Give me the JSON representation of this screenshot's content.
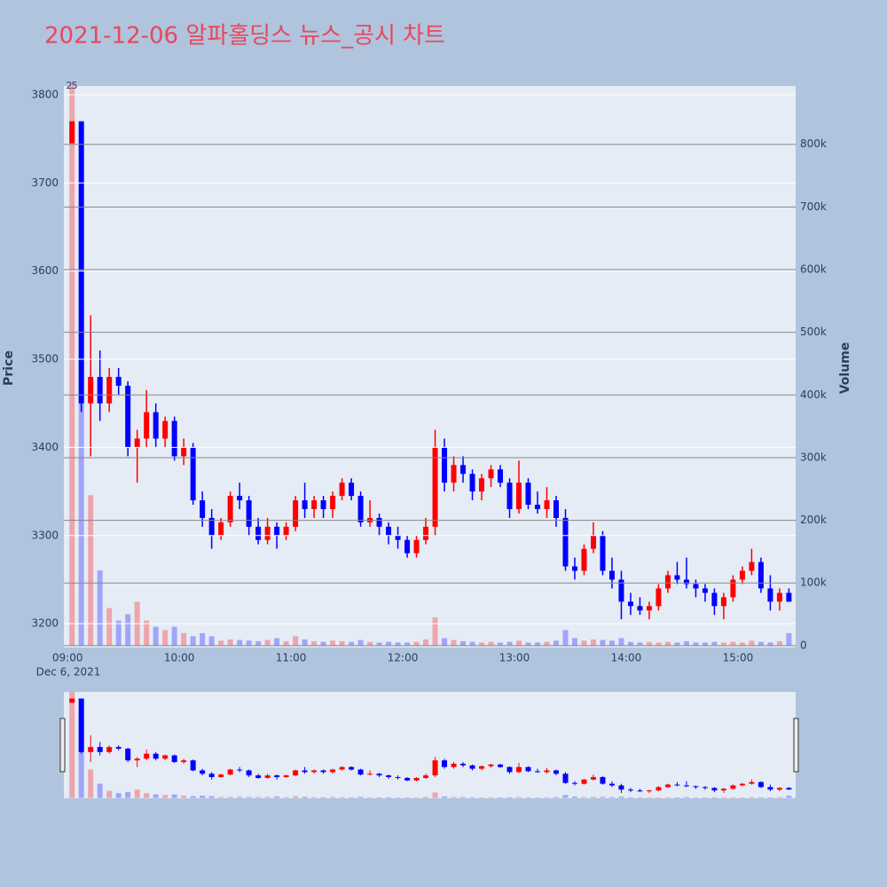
{
  "chart_data": {
    "type": "candlestick",
    "title": "2021-12-06 알파홀딩스 뉴스_공시 차트",
    "ylabel": "Price",
    "y2label": "Volume",
    "x_sublabel": "Dec 6, 2021",
    "annotations": [
      "2",
      "5"
    ],
    "increasing_color": "#ff0000",
    "decreasing_color": "#0000ff",
    "grid": true,
    "x": [
      "09:00",
      "09:05",
      "09:10",
      "09:15",
      "09:20",
      "09:25",
      "09:30",
      "09:35",
      "09:40",
      "09:45",
      "09:50",
      "09:55",
      "10:00",
      "10:05",
      "10:10",
      "10:15",
      "10:20",
      "10:25",
      "10:30",
      "10:35",
      "10:40",
      "10:45",
      "10:50",
      "10:55",
      "11:00",
      "11:05",
      "11:10",
      "11:15",
      "11:20",
      "11:25",
      "11:30",
      "11:35",
      "11:40",
      "11:45",
      "11:50",
      "11:55",
      "12:00",
      "12:05",
      "12:10",
      "12:15",
      "12:20",
      "12:25",
      "12:30",
      "12:35",
      "12:40",
      "12:45",
      "12:50",
      "12:55",
      "13:00",
      "13:05",
      "13:10",
      "13:15",
      "13:20",
      "13:25",
      "13:30",
      "13:35",
      "13:40",
      "13:45",
      "13:50",
      "13:55",
      "14:00",
      "14:05",
      "14:10",
      "14:15",
      "14:20",
      "14:25",
      "14:30",
      "14:35",
      "14:40",
      "14:45",
      "14:50",
      "14:55",
      "15:00",
      "15:05",
      "15:10",
      "15:15",
      "15:20",
      "15:25"
    ],
    "open": [
      3745,
      3770,
      3450,
      3480,
      3450,
      3480,
      3470,
      3400,
      3410,
      3440,
      3410,
      3430,
      3390,
      3400,
      3340,
      3320,
      3300,
      3315,
      3345,
      3340,
      3310,
      3295,
      3310,
      3300,
      3310,
      3340,
      3330,
      3340,
      3330,
      3345,
      3360,
      3345,
      3315,
      3320,
      3310,
      3300,
      3295,
      3280,
      3295,
      3310,
      3400,
      3360,
      3380,
      3370,
      3350,
      3365,
      3375,
      3360,
      3330,
      3360,
      3335,
      3330,
      3340,
      3320,
      3265,
      3260,
      3285,
      3300,
      3260,
      3250,
      3225,
      3220,
      3215,
      3220,
      3240,
      3255,
      3250,
      3245,
      3240,
      3235,
      3220,
      3230,
      3250,
      3260,
      3270,
      3240,
      3225,
      3235
    ],
    "high": [
      3770,
      3770,
      3550,
      3510,
      3490,
      3490,
      3475,
      3420,
      3465,
      3450,
      3435,
      3435,
      3410,
      3405,
      3350,
      3330,
      3320,
      3350,
      3360,
      3345,
      3320,
      3320,
      3315,
      3315,
      3345,
      3360,
      3345,
      3345,
      3350,
      3365,
      3365,
      3350,
      3340,
      3325,
      3315,
      3310,
      3300,
      3300,
      3320,
      3420,
      3410,
      3390,
      3390,
      3375,
      3370,
      3380,
      3380,
      3365,
      3385,
      3365,
      3350,
      3355,
      3345,
      3330,
      3275,
      3290,
      3315,
      3305,
      3275,
      3260,
      3235,
      3230,
      3225,
      3245,
      3260,
      3270,
      3275,
      3250,
      3245,
      3240,
      3235,
      3255,
      3265,
      3285,
      3275,
      3255,
      3240,
      3240
    ],
    "low": [
      3745,
      3440,
      3390,
      3430,
      3440,
      3460,
      3390,
      3360,
      3400,
      3400,
      3400,
      3385,
      3380,
      3335,
      3310,
      3285,
      3295,
      3310,
      3330,
      3300,
      3290,
      3290,
      3285,
      3295,
      3305,
      3320,
      3320,
      3320,
      3320,
      3340,
      3340,
      3310,
      3310,
      3300,
      3290,
      3285,
      3275,
      3275,
      3290,
      3300,
      3350,
      3350,
      3360,
      3340,
      3340,
      3355,
      3355,
      3320,
      3325,
      3330,
      3325,
      3320,
      3310,
      3260,
      3250,
      3255,
      3280,
      3255,
      3240,
      3205,
      3210,
      3210,
      3205,
      3215,
      3235,
      3245,
      3240,
      3230,
      3225,
      3210,
      3205,
      3225,
      3245,
      3255,
      3235,
      3215,
      3215,
      3225
    ],
    "close": [
      3770,
      3450,
      3480,
      3450,
      3480,
      3470,
      3400,
      3410,
      3440,
      3410,
      3430,
      3390,
      3400,
      3340,
      3320,
      3300,
      3315,
      3345,
      3340,
      3310,
      3295,
      3310,
      3300,
      3310,
      3340,
      3330,
      3340,
      3330,
      3345,
      3360,
      3345,
      3315,
      3320,
      3310,
      3300,
      3295,
      3280,
      3295,
      3310,
      3400,
      3360,
      3380,
      3370,
      3350,
      3365,
      3375,
      3360,
      3330,
      3360,
      3335,
      3330,
      3340,
      3320,
      3265,
      3260,
      3285,
      3300,
      3260,
      3250,
      3225,
      3220,
      3215,
      3220,
      3240,
      3255,
      3250,
      3245,
      3240,
      3235,
      3220,
      3230,
      3250,
      3260,
      3270,
      3240,
      3225,
      3235,
      3225
    ],
    "volume": [
      1200000,
      700000,
      240000,
      120000,
      60000,
      40000,
      50000,
      70000,
      40000,
      30000,
      25000,
      30000,
      20000,
      15000,
      20000,
      15000,
      8000,
      10000,
      9000,
      8000,
      7000,
      9000,
      12000,
      7000,
      15000,
      10000,
      7000,
      6000,
      8000,
      7000,
      6000,
      9000,
      6000,
      5000,
      6000,
      5000,
      5000,
      6000,
      10000,
      45000,
      12000,
      9000,
      7000,
      6000,
      5000,
      6000,
      5000,
      6000,
      8000,
      5000,
      5000,
      6000,
      8000,
      25000,
      12000,
      8000,
      10000,
      9000,
      8000,
      12000,
      6000,
      5000,
      6000,
      5000,
      6000,
      5000,
      7000,
      5000,
      5000,
      6000,
      5000,
      6000,
      5000,
      8000,
      6000,
      5000,
      7000,
      20000
    ],
    "xlim": [
      "08:58",
      "15:31"
    ],
    "xticks": [
      "09:00",
      "10:00",
      "11:00",
      "12:00",
      "13:00",
      "14:00",
      "15:00"
    ],
    "ylim": [
      3173,
      3810
    ],
    "yticks": [
      3200,
      3300,
      3400,
      3500,
      3600,
      3700,
      3800
    ],
    "y2lim": [
      -3000,
      893000
    ],
    "y2ticks": [
      0,
      {
        "value": 100000,
        "label": "100k"
      },
      {
        "value": 200000,
        "label": "200k"
      },
      {
        "value": 300000,
        "label": "300k"
      },
      {
        "value": 400000,
        "label": "400k"
      },
      {
        "value": 500000,
        "label": "500k"
      },
      {
        "value": 600000,
        "label": "600k"
      },
      {
        "value": 700000,
        "label": "700k"
      },
      {
        "value": 800000,
        "label": "800k"
      }
    ]
  }
}
